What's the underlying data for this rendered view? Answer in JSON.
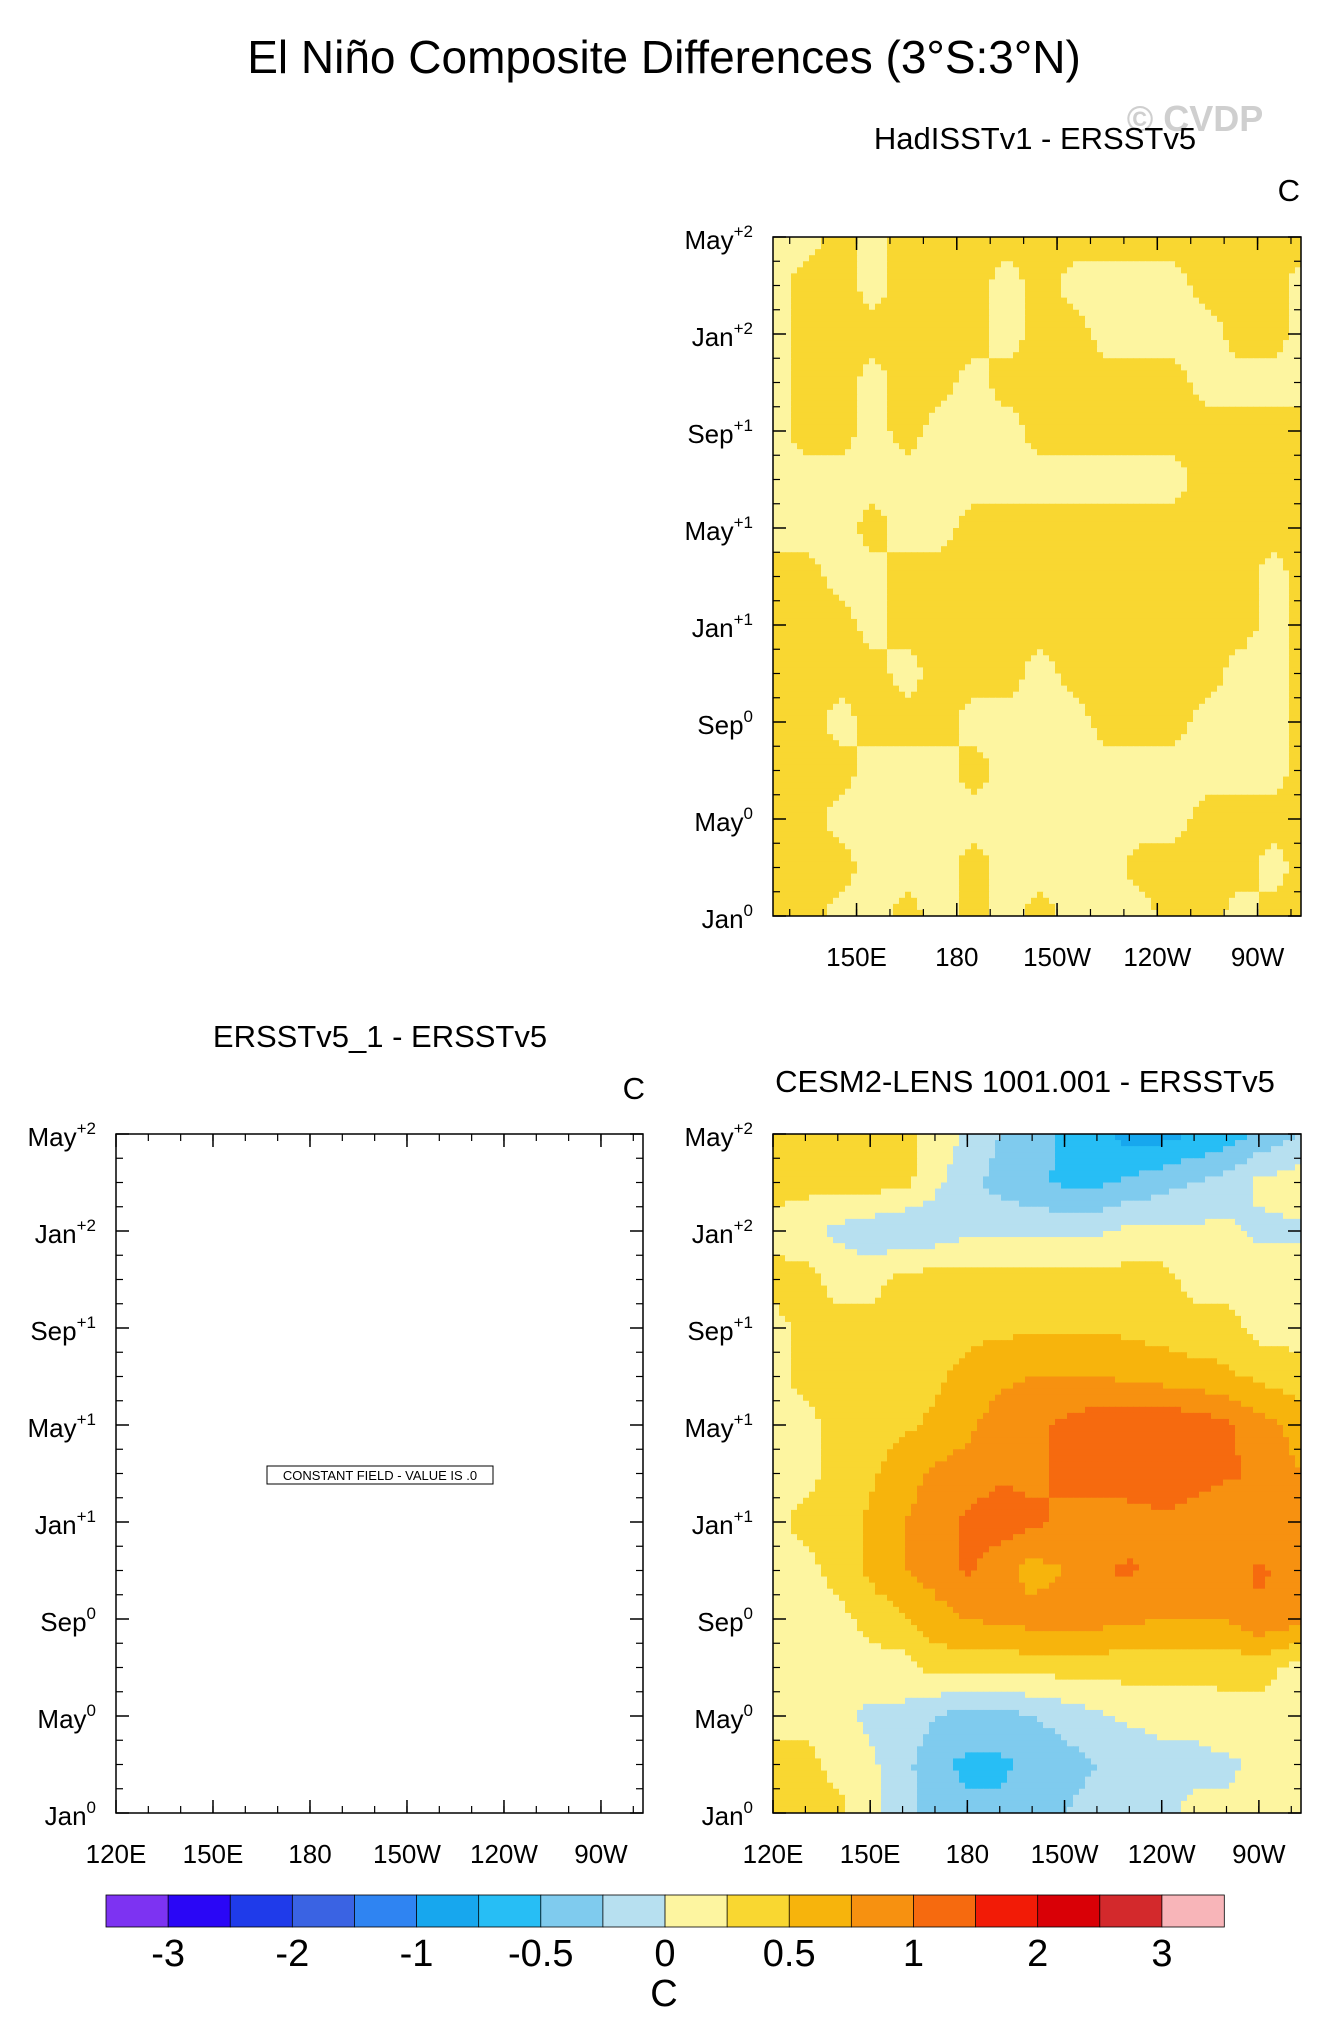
{
  "title": "El Niño Composite Differences (3°S:3°N)",
  "watermark": "© CVDP",
  "chart_data": [
    {
      "type": "heatmap",
      "title": "HadISSTv1 - ERSSTv5",
      "units": "C",
      "x_ticks": [
        "150E",
        "180",
        "150W",
        "120W",
        "90W"
      ],
      "y_ticks": [
        {
          "month": "Jan",
          "sup": "0"
        },
        {
          "month": "May",
          "sup": "0"
        },
        {
          "month": "Sep",
          "sup": "0"
        },
        {
          "month": "Jan",
          "sup": "+1"
        },
        {
          "month": "May",
          "sup": "+1"
        },
        {
          "month": "Sep",
          "sup": "+1"
        },
        {
          "month": "Jan",
          "sup": "+2"
        },
        {
          "month": "May",
          "sup": "+2"
        }
      ],
      "xlim": [
        125,
        283
      ],
      "ylim": [
        0,
        28
      ],
      "x_points": [
        125,
        135,
        145,
        155,
        165,
        175,
        185,
        195,
        205,
        215,
        225,
        235,
        245,
        255,
        265,
        275,
        283
      ],
      "y_points": [
        0,
        2,
        4,
        6,
        8,
        10,
        12,
        14,
        16,
        18,
        20,
        22,
        24,
        26,
        28
      ],
      "grid": [
        [
          0.05,
          0.1,
          -0.1,
          -0.1,
          0.1,
          -0.1,
          0.1,
          -0.1,
          0.1,
          -0.1,
          -0.1,
          -0.1,
          0.1,
          0.1,
          -0.1,
          0.1,
          0.1
        ],
        [
          0.1,
          0.1,
          0.1,
          -0.1,
          -0.1,
          -0.1,
          0.1,
          -0.1,
          -0.1,
          -0.1,
          -0.1,
          0.1,
          0.1,
          0.1,
          0.1,
          -0.1,
          0.1
        ],
        [
          0.1,
          0.1,
          -0.1,
          -0.1,
          -0.1,
          -0.1,
          -0.1,
          -0.1,
          -0.1,
          -0.1,
          -0.1,
          -0.1,
          -0.1,
          0.1,
          0.1,
          0.1,
          0.1
        ],
        [
          0.1,
          0.1,
          0.1,
          -0.1,
          -0.1,
          -0.1,
          0.1,
          -0.1,
          -0.1,
          -0.1,
          -0.1,
          -0.1,
          -0.1,
          -0.1,
          -0.1,
          -0.1,
          0.1
        ],
        [
          0.1,
          0.1,
          -0.1,
          0.1,
          0.1,
          0.1,
          -0.1,
          -0.1,
          -0.1,
          -0.1,
          0.1,
          0.1,
          0.1,
          -0.1,
          -0.1,
          -0.1,
          0.1
        ],
        [
          0.1,
          0.1,
          0.1,
          0.1,
          -0.1,
          0.1,
          0.1,
          0.1,
          -0.1,
          0.1,
          0.1,
          0.1,
          0.1,
          0.1,
          -0.1,
          -0.1,
          0.1
        ],
        [
          0.1,
          0.1,
          0.1,
          -0.1,
          0.1,
          0.1,
          0.1,
          0.1,
          0.1,
          0.1,
          0.1,
          0.1,
          0.1,
          0.1,
          0.1,
          -0.1,
          0.1
        ],
        [
          0.1,
          0.1,
          -0.1,
          -0.1,
          0.1,
          0.1,
          0.1,
          0.1,
          0.1,
          0.1,
          0.1,
          0.1,
          0.1,
          0.1,
          0.1,
          -0.1,
          0.1
        ],
        [
          -0.1,
          -0.1,
          -0.1,
          0.1,
          -0.1,
          -0.1,
          0.1,
          0.1,
          0.1,
          0.1,
          0.1,
          0.1,
          0.1,
          0.1,
          0.1,
          0.1,
          0.1
        ],
        [
          -0.1,
          -0.1,
          -0.1,
          -0.1,
          -0.1,
          -0.1,
          -0.1,
          -0.1,
          -0.1,
          -0.1,
          -0.1,
          -0.1,
          -0.1,
          0.1,
          0.1,
          0.1,
          0.1
        ],
        [
          -0.1,
          0.1,
          0.1,
          -0.1,
          0.1,
          -0.1,
          -0.1,
          -0.1,
          0.1,
          0.1,
          0.1,
          0.1,
          0.1,
          0.1,
          0.1,
          0.1,
          0.1
        ],
        [
          -0.1,
          0.1,
          0.1,
          -0.1,
          0.1,
          0.1,
          -0.1,
          0.1,
          0.1,
          0.1,
          0.1,
          0.1,
          0.1,
          -0.1,
          -0.1,
          -0.1,
          -0.1
        ],
        [
          -0.1,
          0.1,
          0.1,
          0.1,
          0.1,
          0.1,
          0.1,
          -0.1,
          0.1,
          0.1,
          -0.1,
          -0.1,
          -0.1,
          -0.1,
          0.1,
          0.1,
          -0.1
        ],
        [
          -0.1,
          0.1,
          0.1,
          -0.1,
          0.1,
          0.1,
          0.1,
          -0.1,
          0.1,
          -0.1,
          -0.1,
          -0.1,
          -0.1,
          0.1,
          0.1,
          0.1,
          -0.1
        ],
        [
          -0.1,
          -0.1,
          0.1,
          -0.1,
          0.1,
          0.1,
          0.1,
          0.1,
          0.1,
          0.1,
          0.1,
          0.1,
          0.1,
          0.1,
          0.1,
          0.1,
          0.1
        ]
      ]
    },
    {
      "type": "heatmap",
      "title": "ERSSTv5_1 - ERSSTv5",
      "units": "C",
      "note": "CONSTANT FIELD - VALUE IS .0",
      "x_ticks": [
        "120E",
        "150E",
        "180",
        "150W",
        "120W",
        "90W"
      ],
      "y_ticks": [
        {
          "month": "Jan",
          "sup": "0"
        },
        {
          "month": "May",
          "sup": "0"
        },
        {
          "month": "Sep",
          "sup": "0"
        },
        {
          "month": "Jan",
          "sup": "+1"
        },
        {
          "month": "May",
          "sup": "+1"
        },
        {
          "month": "Sep",
          "sup": "+1"
        },
        {
          "month": "Jan",
          "sup": "+2"
        },
        {
          "month": "May",
          "sup": "+2"
        }
      ],
      "xlim": [
        120,
        283
      ],
      "ylim": [
        0,
        28
      ]
    },
    {
      "type": "heatmap",
      "title": "CESM2-LENS 1001.001 - ERSSTv5",
      "units": "C",
      "x_ticks": [
        "120E",
        "150E",
        "180",
        "150W",
        "120W",
        "90W"
      ],
      "y_ticks": [
        {
          "month": "Jan",
          "sup": "0"
        },
        {
          "month": "May",
          "sup": "0"
        },
        {
          "month": "Sep",
          "sup": "0"
        },
        {
          "month": "Jan",
          "sup": "+1"
        },
        {
          "month": "May",
          "sup": "+1"
        },
        {
          "month": "Sep",
          "sup": "+1"
        },
        {
          "month": "Jan",
          "sup": "+2"
        },
        {
          "month": "May",
          "sup": "+2"
        }
      ],
      "xlim": [
        120,
        283
      ],
      "ylim": [
        0,
        28
      ],
      "x_points": [
        120,
        130,
        140,
        150,
        160,
        170,
        180,
        190,
        200,
        210,
        220,
        230,
        240,
        250,
        260,
        270,
        283
      ],
      "y_points": [
        0,
        2,
        4,
        6,
        8,
        10,
        12,
        14,
        16,
        18,
        20,
        22,
        24,
        26,
        28
      ],
      "grid": [
        [
          0.1,
          0.1,
          0.1,
          -0.2,
          -0.4,
          -0.6,
          -0.7,
          -0.7,
          -0.6,
          -0.5,
          -0.4,
          -0.3,
          -0.3,
          -0.2,
          -0.2,
          -0.1,
          -0.1
        ],
        [
          0.1,
          0.1,
          -0.1,
          -0.2,
          -0.4,
          -0.7,
          -0.8,
          -0.8,
          -0.7,
          -0.6,
          -0.5,
          -0.4,
          -0.3,
          -0.3,
          -0.3,
          -0.2,
          -0.1
        ],
        [
          -0.1,
          -0.1,
          -0.2,
          -0.3,
          -0.3,
          -0.5,
          -0.6,
          -0.6,
          -0.5,
          -0.4,
          -0.3,
          -0.2,
          -0.2,
          -0.2,
          -0.1,
          -0.1,
          -0.1
        ],
        [
          -0.1,
          -0.2,
          -0.1,
          -0.1,
          -0.1,
          0.1,
          0.1,
          0.1,
          0.1,
          0.1,
          0.1,
          0.1,
          0.1,
          0.1,
          0.1,
          0.1,
          -0.1
        ],
        [
          -0.1,
          -0.1,
          -0.1,
          0.1,
          0.2,
          0.4,
          0.5,
          0.55,
          0.6,
          0.65,
          0.6,
          0.55,
          0.5,
          0.5,
          0.5,
          0.7,
          0.6
        ],
        [
          -0.1,
          -0.1,
          0.1,
          0.3,
          0.5,
          0.6,
          0.8,
          0.6,
          0.4,
          0.5,
          0.7,
          0.8,
          0.6,
          0.5,
          0.6,
          0.8,
          0.6
        ],
        [
          -0.1,
          0.1,
          0.1,
          0.3,
          0.5,
          0.6,
          0.8,
          0.9,
          0.8,
          0.7,
          0.6,
          0.6,
          0.7,
          0.6,
          0.5,
          0.6,
          0.5
        ],
        [
          -0.1,
          -0.1,
          0.1,
          0.2,
          0.4,
          0.55,
          0.6,
          0.7,
          0.7,
          0.8,
          0.9,
          0.95,
          0.95,
          0.9,
          0.8,
          0.7,
          0.5
        ],
        [
          -0.1,
          -0.1,
          0.1,
          0.1,
          0.2,
          0.3,
          0.45,
          0.6,
          0.7,
          0.8,
          0.9,
          0.95,
          0.95,
          0.9,
          0.8,
          0.6,
          0.4
        ],
        [
          -0.1,
          0.1,
          0.1,
          0.1,
          0.1,
          0.2,
          0.35,
          0.45,
          0.5,
          0.5,
          0.5,
          0.45,
          0.4,
          0.35,
          0.3,
          0.2,
          0.1
        ],
        [
          -0.1,
          0.1,
          0.1,
          0.1,
          0.1,
          0.1,
          0.15,
          0.2,
          0.2,
          0.2,
          0.2,
          0.2,
          0.15,
          0.1,
          0.1,
          -0.1,
          -0.1
        ],
        [
          0.1,
          0.1,
          -0.1,
          -0.1,
          0.1,
          0.1,
          0.1,
          0.1,
          0.1,
          0.1,
          0.1,
          0.1,
          0.1,
          -0.1,
          -0.1,
          -0.1,
          -0.1
        ],
        [
          -0.1,
          -0.2,
          -0.3,
          -0.4,
          -0.5,
          -0.4,
          -0.3,
          -0.3,
          -0.3,
          -0.3,
          -0.3,
          -0.2,
          -0.2,
          -0.2,
          -0.2,
          -0.3,
          -0.3
        ],
        [
          0.1,
          0.1,
          0.1,
          0.1,
          0.1,
          -0.2,
          -0.4,
          -0.6,
          -0.7,
          -0.8,
          -0.8,
          -0.7,
          -0.6,
          -0.5,
          -0.4,
          -0.2,
          -0.1
        ],
        [
          0.1,
          0.2,
          0.1,
          0.1,
          0.1,
          -0.1,
          -0.3,
          -0.5,
          -0.6,
          -0.8,
          -0.9,
          -1.1,
          -1.1,
          -1.0,
          -0.9,
          -0.7,
          -0.5
        ]
      ]
    }
  ],
  "colorbar": {
    "label": "C",
    "tick_labels": [
      "-3",
      "-2",
      "-1",
      "-0.5",
      "0",
      "0.5",
      "1",
      "2",
      "3"
    ],
    "levels": [
      -3.5,
      -3,
      -2.5,
      -2,
      -1.5,
      -1,
      -0.75,
      -0.5,
      -0.25,
      0,
      0.25,
      0.5,
      0.75,
      1,
      1.5,
      2,
      2.5,
      3
    ],
    "colors": [
      "#7d33f2",
      "#2a06f6",
      "#1f3bea",
      "#3a63e3",
      "#2f84f2",
      "#17a7ee",
      "#27bef5",
      "#7fcbee",
      "#b7e0f0",
      "#fdf5a0",
      "#f9d731",
      "#f7b40c",
      "#f79110",
      "#f66a0f",
      "#f21b06",
      "#d90006",
      "#d3292c",
      "#f8b5b9"
    ]
  }
}
